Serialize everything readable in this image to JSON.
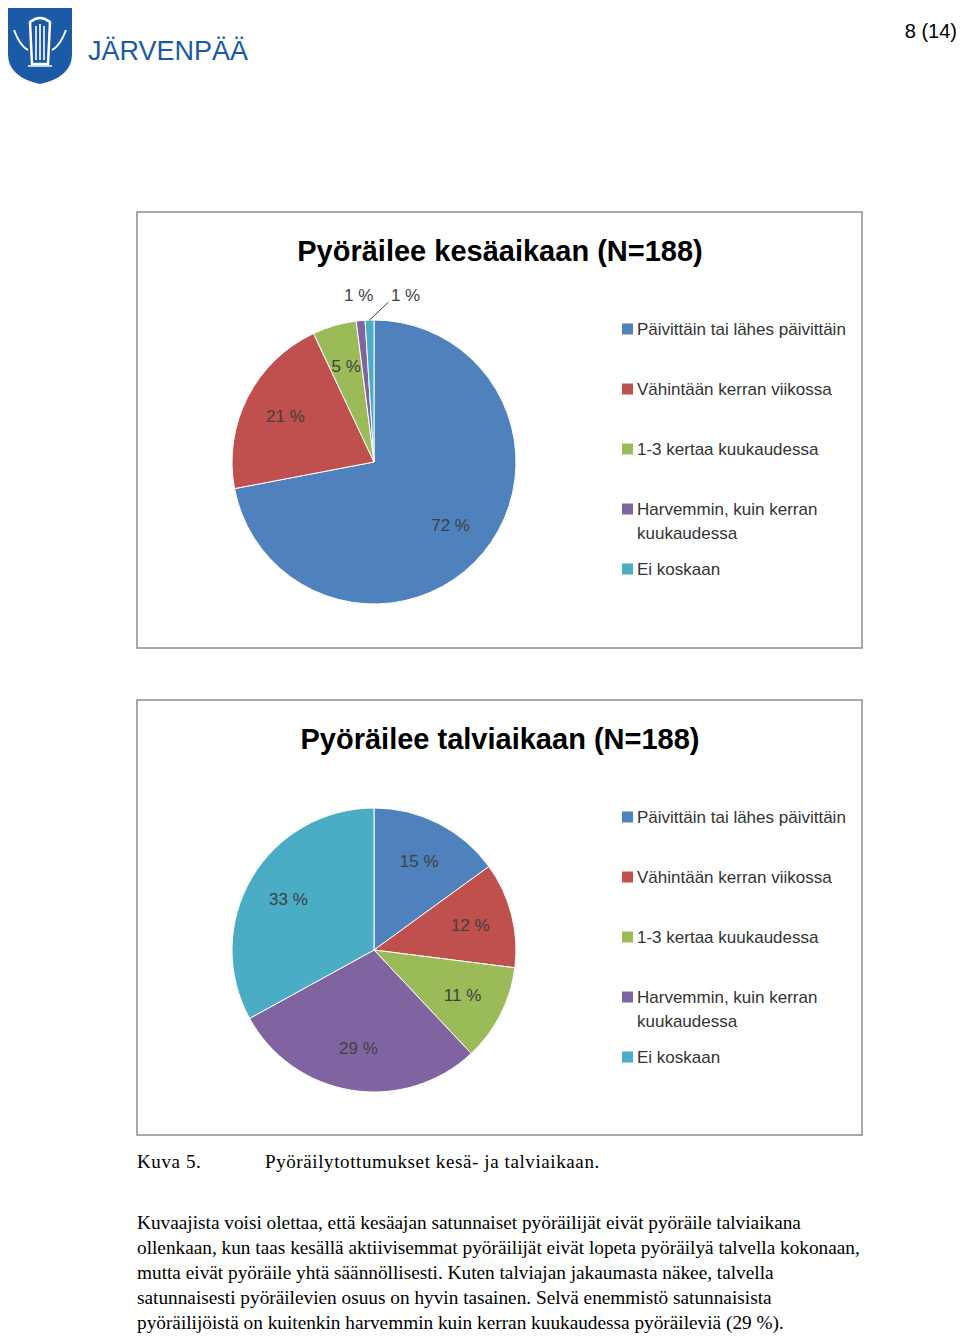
{
  "header": {
    "logo_text": "JÄRVENPÄÄ",
    "page_number": "8 (14)"
  },
  "chart_data": [
    {
      "type": "pie",
      "title": "Pyöräilee kesäaikaan (N=188)",
      "categories": [
        "Päivittäin tai lähes päivittäin",
        "Vähintään kerran viikossa",
        "1-3 kertaa kuukaudessa",
        "Harvemmin, kuin kerran kuukaudessa",
        "Ei koskaan"
      ],
      "values": [
        72,
        21,
        5,
        1,
        1
      ],
      "value_labels": [
        "72 %",
        "21 %",
        "5 %",
        "1 %",
        "1 %"
      ],
      "colors": [
        "#4f81bd",
        "#c0504d",
        "#9bbb59",
        "#8064a2",
        "#4bacc6"
      ],
      "data_labels": true,
      "legend": "right"
    },
    {
      "type": "pie",
      "title": "Pyöräilee talviaikaan (N=188)",
      "categories": [
        "Päivittäin tai lähes päivittäin",
        "Vähintään kerran viikossa",
        "1-3 kertaa kuukaudessa",
        "Harvemmin, kuin kerran kuukaudessa",
        "Ei koskaan"
      ],
      "values": [
        15,
        12,
        11,
        29,
        33
      ],
      "value_labels": [
        "15 %",
        "12 %",
        "11 %",
        "29 %",
        "33 %"
      ],
      "colors": [
        "#4f81bd",
        "#c0504d",
        "#9bbb59",
        "#8064a2",
        "#4bacc6"
      ],
      "data_labels": true,
      "legend": "right"
    }
  ],
  "caption": {
    "label": "Kuva 5.",
    "text": "Pyöräilytottumukset kesä- ja talviaikaan."
  },
  "paragraph": [
    "Kuvaajista voisi olettaa, että kesäajan satunnaiset pyöräilijät eivät pyöräile talviaikana",
    "ollenkaan, kun taas kesällä aktiivisemmat pyöräilijät eivät lopeta pyöräilyä talvella kokonaan,",
    "mutta eivät pyöräile yhtä säännöllisesti. Kuten talviajan jakaumasta näkee, talvella",
    "satunnaisesti pyöräilevien osuus on hyvin tasainen. Selvä enemmistö satunnaisista",
    "pyöräilijöistä on kuitenkin harvemmin kuin kerran kuukaudessa pyöräileviä (29 %)."
  ]
}
